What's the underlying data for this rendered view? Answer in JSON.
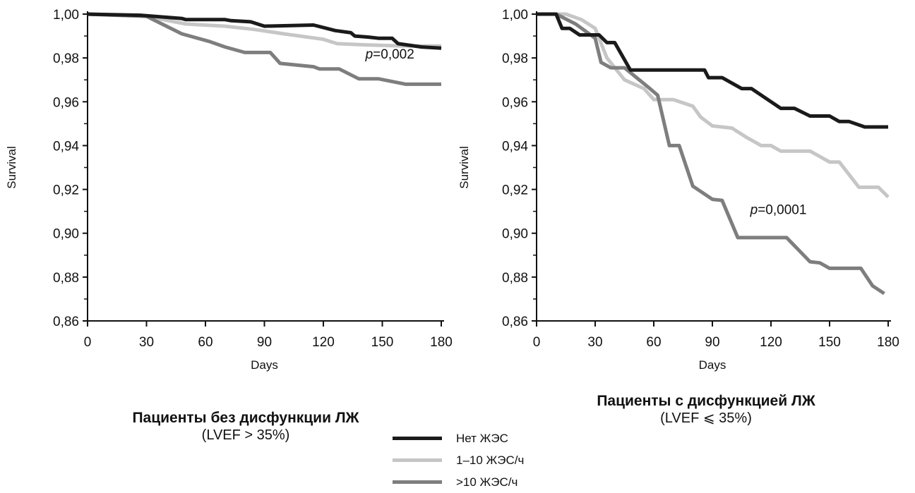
{
  "chart_data": [
    {
      "type": "line",
      "ylabel": "Survival",
      "xlabel": "Days",
      "xlim": [
        0,
        180
      ],
      "ylim": [
        0.86,
        1.0
      ],
      "x_ticks": [
        "0",
        "30",
        "60",
        "90",
        "120",
        "150",
        "180"
      ],
      "y_ticks": [
        "0,86",
        "0,88",
        "0,90",
        "0,92",
        "0,94",
        "0,96",
        "0,98",
        "1,00"
      ],
      "annotation": {
        "text": "=0,002",
        "italic_prefix": "p",
        "x": 145,
        "y": 0.982
      },
      "caption_title": "Пациенты без дисфункции ЛЖ",
      "caption_sub": "(LVEF > 35%)",
      "series": [
        {
          "name": "Нет ЖЭС",
          "color": "#1a1a1a",
          "points": [
            [
              0,
              1.0
            ],
            [
              27,
              0.9995
            ],
            [
              48,
              0.998
            ],
            [
              50,
              0.9975
            ],
            [
              70,
              0.9975
            ],
            [
              73,
              0.997
            ],
            [
              83,
              0.9965
            ],
            [
              90,
              0.9945
            ],
            [
              115,
              0.995
            ],
            [
              126,
              0.9925
            ],
            [
              134,
              0.9915
            ],
            [
              136,
              0.99
            ],
            [
              143,
              0.9895
            ],
            [
              148,
              0.989
            ],
            [
              155,
              0.989
            ],
            [
              158,
              0.9865
            ],
            [
              170,
              0.985
            ],
            [
              180,
              0.9845
            ]
          ]
        },
        {
          "name": "1–10 ЖЭС/ч",
          "color": "#c6c6c6",
          "points": [
            [
              0,
              1.0
            ],
            [
              30,
              0.999
            ],
            [
              50,
              0.9955
            ],
            [
              70,
              0.9945
            ],
            [
              85,
              0.993
            ],
            [
              100,
              0.991
            ],
            [
              120,
              0.9885
            ],
            [
              127,
              0.9865
            ],
            [
              140,
              0.986
            ],
            [
              160,
              0.9855
            ],
            [
              180,
              0.9855
            ]
          ]
        },
        {
          "name": ">10 ЖЭС/ч",
          "color": "#7e7e7e",
          "points": [
            [
              0,
              1.0
            ],
            [
              30,
              0.999
            ],
            [
              48,
              0.991
            ],
            [
              62,
              0.9875
            ],
            [
              70,
              0.985
            ],
            [
              80,
              0.9825
            ],
            [
              93,
              0.9825
            ],
            [
              98,
              0.9775
            ],
            [
              115,
              0.976
            ],
            [
              118,
              0.975
            ],
            [
              128,
              0.975
            ],
            [
              138,
              0.9705
            ],
            [
              148,
              0.9705
            ],
            [
              162,
              0.968
            ],
            [
              180,
              0.968
            ]
          ]
        }
      ]
    },
    {
      "type": "line",
      "ylabel": "Survival",
      "xlabel": "Days",
      "xlim": [
        0,
        180
      ],
      "ylim": [
        0.86,
        1.0
      ],
      "x_ticks": [
        "0",
        "30",
        "60",
        "90",
        "120",
        "150",
        "180"
      ],
      "y_ticks": [
        "0,86",
        "0,88",
        "0,90",
        "0,92",
        "0,94",
        "0,96",
        "0,98",
        "1,00"
      ],
      "annotation": {
        "text": "=0,0001",
        "italic_prefix": "p",
        "x": 113,
        "y": 0.911
      },
      "caption_title": "Пациенты с дисфункцией ЛЖ",
      "caption_sub": "(LVEF ⩽ 35%)",
      "series": [
        {
          "name": "Нет ЖЭС",
          "color": "#1a1a1a",
          "points": [
            [
              0,
              1.0
            ],
            [
              10,
              1.0
            ],
            [
              13,
              0.9935
            ],
            [
              17,
              0.9935
            ],
            [
              22,
              0.9905
            ],
            [
              32,
              0.9905
            ],
            [
              36,
              0.987
            ],
            [
              40,
              0.987
            ],
            [
              48,
              0.9745
            ],
            [
              86,
              0.9745
            ],
            [
              88,
              0.971
            ],
            [
              95,
              0.971
            ],
            [
              105,
              0.966
            ],
            [
              110,
              0.966
            ],
            [
              125,
              0.957
            ],
            [
              132,
              0.957
            ],
            [
              140,
              0.9535
            ],
            [
              150,
              0.9535
            ],
            [
              155,
              0.951
            ],
            [
              160,
              0.951
            ],
            [
              168,
              0.9485
            ],
            [
              180,
              0.9485
            ]
          ]
        },
        {
          "name": "1–10 ЖЭС/ч",
          "color": "#c6c6c6",
          "points": [
            [
              0,
              1.0
            ],
            [
              15,
              1.0
            ],
            [
              23,
              0.9975
            ],
            [
              30,
              0.9935
            ],
            [
              36,
              0.98
            ],
            [
              45,
              0.97
            ],
            [
              55,
              0.966
            ],
            [
              60,
              0.961
            ],
            [
              70,
              0.961
            ],
            [
              80,
              0.958
            ],
            [
              84,
              0.953
            ],
            [
              90,
              0.949
            ],
            [
              100,
              0.948
            ],
            [
              108,
              0.9435
            ],
            [
              115,
              0.94
            ],
            [
              120,
              0.94
            ],
            [
              125,
              0.9375
            ],
            [
              140,
              0.9375
            ],
            [
              150,
              0.9325
            ],
            [
              155,
              0.9325
            ],
            [
              165,
              0.921
            ],
            [
              175,
              0.921
            ],
            [
              180,
              0.9165
            ]
          ]
        },
        {
          "name": ">10 ЖЭС/ч",
          "color": "#7e7e7e",
          "points": [
            [
              0,
              1.0
            ],
            [
              10,
              1.0
            ],
            [
              20,
              0.9955
            ],
            [
              30,
              0.989
            ],
            [
              33,
              0.978
            ],
            [
              38,
              0.9755
            ],
            [
              45,
              0.9755
            ],
            [
              58,
              0.966
            ],
            [
              62,
              0.963
            ],
            [
              68,
              0.94
            ],
            [
              73,
              0.94
            ],
            [
              80,
              0.9215
            ],
            [
              90,
              0.9155
            ],
            [
              95,
              0.915
            ],
            [
              103,
              0.898
            ],
            [
              128,
              0.898
            ],
            [
              140,
              0.887
            ],
            [
              145,
              0.8865
            ],
            [
              150,
              0.884
            ],
            [
              166,
              0.884
            ],
            [
              172,
              0.876
            ],
            [
              178,
              0.8725
            ]
          ]
        }
      ]
    }
  ],
  "legend": [
    {
      "label": "Нет ЖЭС",
      "color": "#1a1a1a"
    },
    {
      "label": "1–10 ЖЭС/ч",
      "color": "#c6c6c6"
    },
    {
      ">10": "",
      "label": ">10 ЖЭС/ч",
      "color": "#7e7e7e"
    }
  ]
}
